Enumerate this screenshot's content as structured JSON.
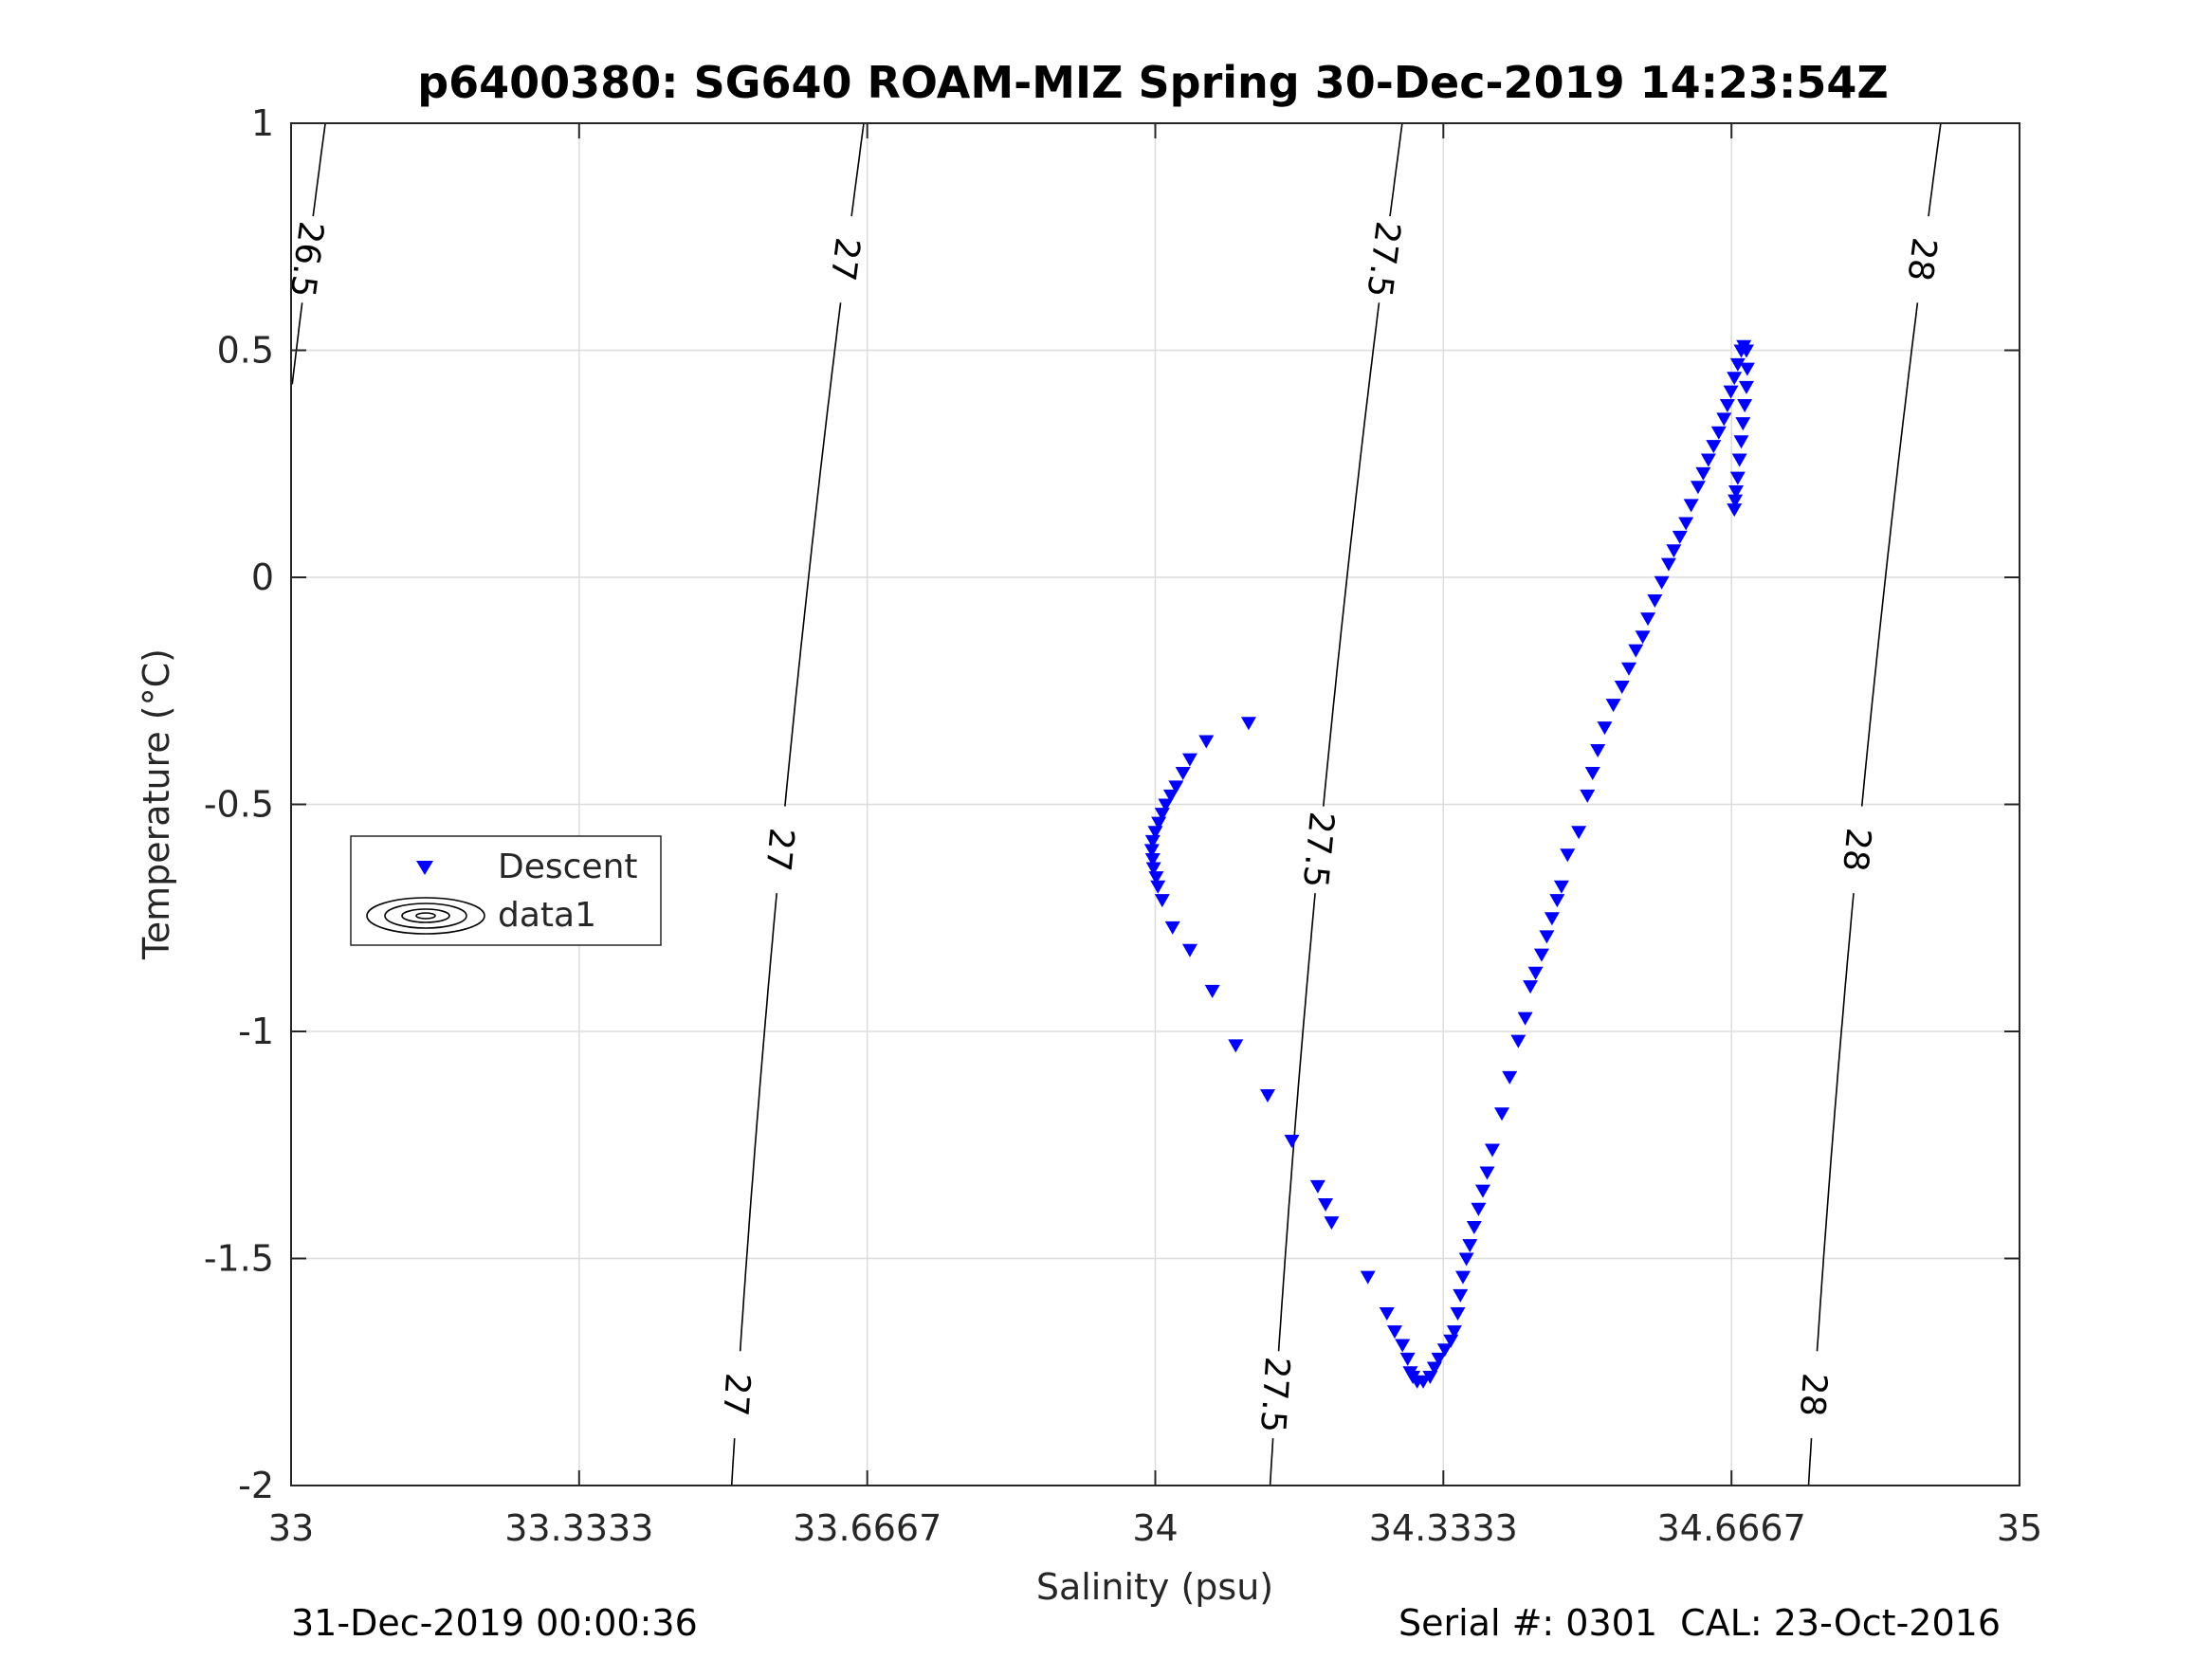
{
  "chart_data": {
    "type": "scatter",
    "title": "p6400380: SG640 ROAM-MIZ Spring 30-Dec-2019 14:23:54Z",
    "xlabel": "Salinity (psu)",
    "ylabel": "Temperature (°C)",
    "xlim": [
      33,
      35
    ],
    "ylim": [
      -2,
      1
    ],
    "grid": true,
    "xticks": [
      33,
      33.3333,
      33.6667,
      34,
      34.3333,
      34.6667,
      35
    ],
    "xtick_labels": [
      "33",
      "33.3333",
      "33.6667",
      "34",
      "34.3333",
      "34.6667",
      "35"
    ],
    "yticks": [
      -2,
      -1.5,
      -1,
      -0.5,
      0,
      0.5,
      1
    ],
    "ytick_labels": [
      "-2",
      "-1.5",
      "-1",
      "-0.5",
      "0",
      "0.5",
      "1"
    ],
    "legend": {
      "location": "west",
      "entries": [
        {
          "label": "Descent",
          "marker": "down-triangle",
          "color": "#0000ff"
        },
        {
          "label": "data1",
          "marker": "contour-ellipses",
          "color": "#000000"
        }
      ]
    },
    "series": [
      {
        "name": "Descent",
        "marker": "down-triangle",
        "color": "#0000ff",
        "points": [
          [
            34.108,
            -0.32
          ],
          [
            34.059,
            -0.36
          ],
          [
            34.04,
            -0.4
          ],
          [
            34.032,
            -0.43
          ],
          [
            34.024,
            -0.46
          ],
          [
            34.018,
            -0.48
          ],
          [
            34.012,
            -0.5
          ],
          [
            34.008,
            -0.52
          ],
          [
            34.004,
            -0.54
          ],
          [
            34.0,
            -0.56
          ],
          [
            33.997,
            -0.58
          ],
          [
            33.996,
            -0.6
          ],
          [
            33.997,
            -0.62
          ],
          [
            33.998,
            -0.64
          ],
          [
            34.001,
            -0.66
          ],
          [
            34.003,
            -0.68
          ],
          [
            34.008,
            -0.71
          ],
          [
            34.02,
            -0.77
          ],
          [
            34.04,
            -0.82
          ],
          [
            34.066,
            -0.91
          ],
          [
            34.093,
            -1.03
          ],
          [
            34.13,
            -1.14
          ],
          [
            34.158,
            -1.24
          ],
          [
            34.188,
            -1.34
          ],
          [
            34.197,
            -1.38
          ],
          [
            34.204,
            -1.42
          ],
          [
            34.246,
            -1.54
          ],
          [
            34.268,
            -1.62
          ],
          [
            34.277,
            -1.66
          ],
          [
            34.286,
            -1.69
          ],
          [
            34.292,
            -1.72
          ],
          [
            34.295,
            -1.75
          ],
          [
            34.298,
            -1.76
          ],
          [
            34.303,
            -1.77
          ],
          [
            34.31,
            -1.77
          ],
          [
            34.318,
            -1.76
          ],
          [
            34.323,
            -1.74
          ],
          [
            34.328,
            -1.72
          ],
          [
            34.335,
            -1.7
          ],
          [
            34.342,
            -1.68
          ],
          [
            34.346,
            -1.66
          ],
          [
            34.35,
            -1.62
          ],
          [
            34.353,
            -1.58
          ],
          [
            34.356,
            -1.54
          ],
          [
            34.36,
            -1.5
          ],
          [
            34.364,
            -1.47
          ],
          [
            34.369,
            -1.43
          ],
          [
            34.374,
            -1.39
          ],
          [
            34.379,
            -1.35
          ],
          [
            34.384,
            -1.31
          ],
          [
            34.39,
            -1.26
          ],
          [
            34.401,
            -1.18
          ],
          [
            34.41,
            -1.1
          ],
          [
            34.42,
            -1.02
          ],
          [
            34.428,
            -0.97
          ],
          [
            34.434,
            -0.9
          ],
          [
            34.44,
            -0.87
          ],
          [
            34.447,
            -0.83
          ],
          [
            34.453,
            -0.79
          ],
          [
            34.459,
            -0.75
          ],
          [
            34.465,
            -0.71
          ],
          [
            34.47,
            -0.68
          ],
          [
            34.477,
            -0.61
          ],
          [
            34.49,
            -0.56
          ],
          [
            34.5,
            -0.48
          ],
          [
            34.506,
            -0.43
          ],
          [
            34.512,
            -0.38
          ],
          [
            34.52,
            -0.33
          ],
          [
            34.53,
            -0.28
          ],
          [
            34.54,
            -0.24
          ],
          [
            34.548,
            -0.2
          ],
          [
            34.556,
            -0.16
          ],
          [
            34.564,
            -0.13
          ],
          [
            34.57,
            -0.09
          ],
          [
            34.578,
            -0.05
          ],
          [
            34.586,
            -0.01
          ],
          [
            34.594,
            0.03
          ],
          [
            34.6,
            0.06
          ],
          [
            34.607,
            0.09
          ],
          [
            34.614,
            0.12
          ],
          [
            34.62,
            0.16
          ],
          [
            34.628,
            0.2
          ],
          [
            34.634,
            0.23
          ],
          [
            34.64,
            0.26
          ],
          [
            34.646,
            0.29
          ],
          [
            34.652,
            0.32
          ],
          [
            34.658,
            0.35
          ],
          [
            34.662,
            0.38
          ],
          [
            34.666,
            0.41
          ],
          [
            34.67,
            0.44
          ],
          [
            34.674,
            0.47
          ],
          [
            34.678,
            0.5
          ],
          [
            34.681,
            0.51
          ],
          [
            34.684,
            0.5
          ],
          [
            34.685,
            0.46
          ],
          [
            34.684,
            0.42
          ],
          [
            34.682,
            0.38
          ],
          [
            34.68,
            0.34
          ],
          [
            34.678,
            0.3
          ],
          [
            34.676,
            0.26
          ],
          [
            34.674,
            0.22
          ],
          [
            34.672,
            0.19
          ],
          [
            34.671,
            0.17
          ],
          [
            34.67,
            0.15
          ]
        ]
      }
    ],
    "isopycnals": [
      {
        "value": 26.5,
        "label": "26.5"
      },
      {
        "value": 27,
        "label": "27"
      },
      {
        "value": 27.5,
        "label": "27.5"
      },
      {
        "value": 28,
        "label": "28"
      }
    ]
  },
  "footer": {
    "left": "31-Dec-2019 00:00:36",
    "right": "Serial #: 0301  CAL: 23-Oct-2016"
  }
}
